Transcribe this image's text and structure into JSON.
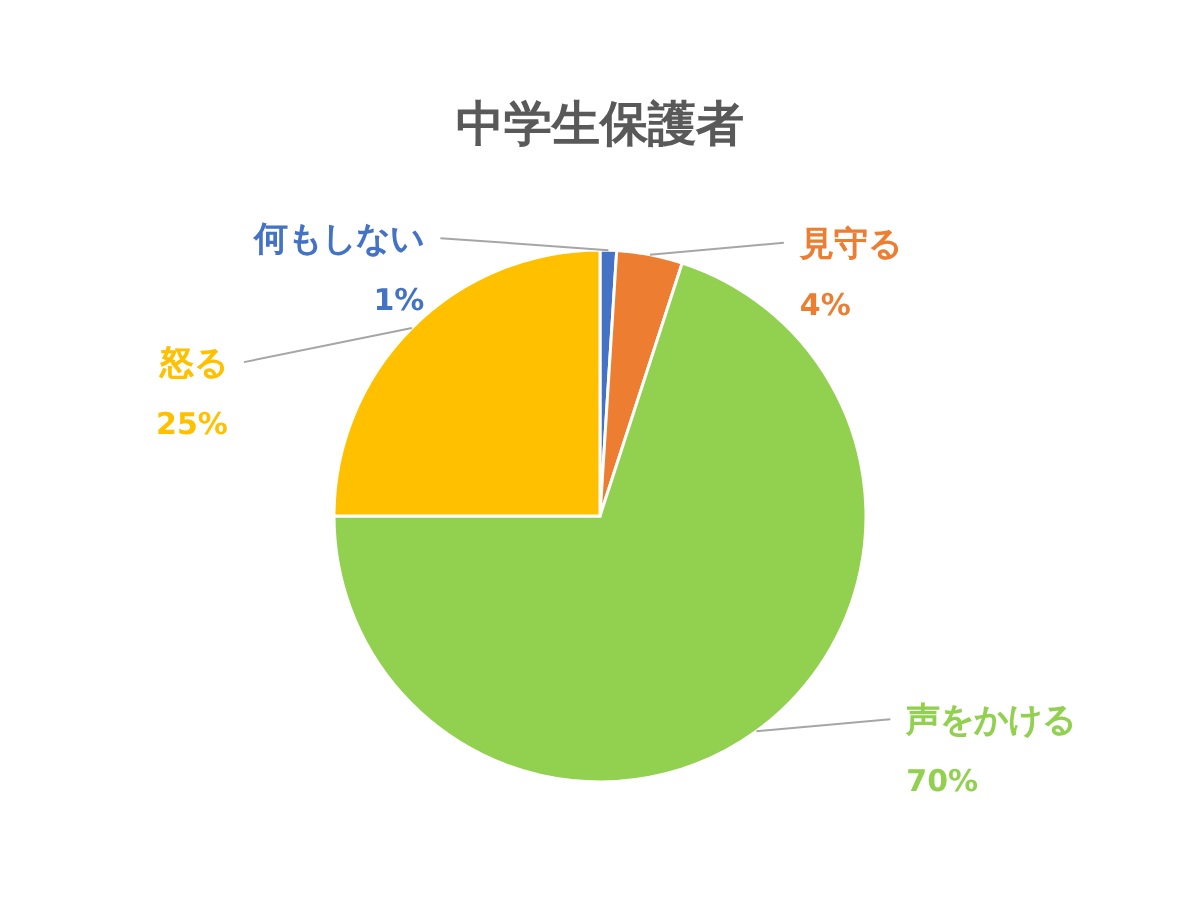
{
  "chart_data": {
    "type": "pie",
    "title": "中学生保護者",
    "categories": [
      "何もしない",
      "見守る",
      "声をかける",
      "怒る"
    ],
    "values": [
      1,
      4,
      70,
      25
    ],
    "colors": [
      "#4472c4",
      "#ed7d31",
      "#92d050",
      "#ffc000"
    ],
    "value_labels": [
      "1%",
      "4%",
      "70%",
      "25%"
    ]
  }
}
